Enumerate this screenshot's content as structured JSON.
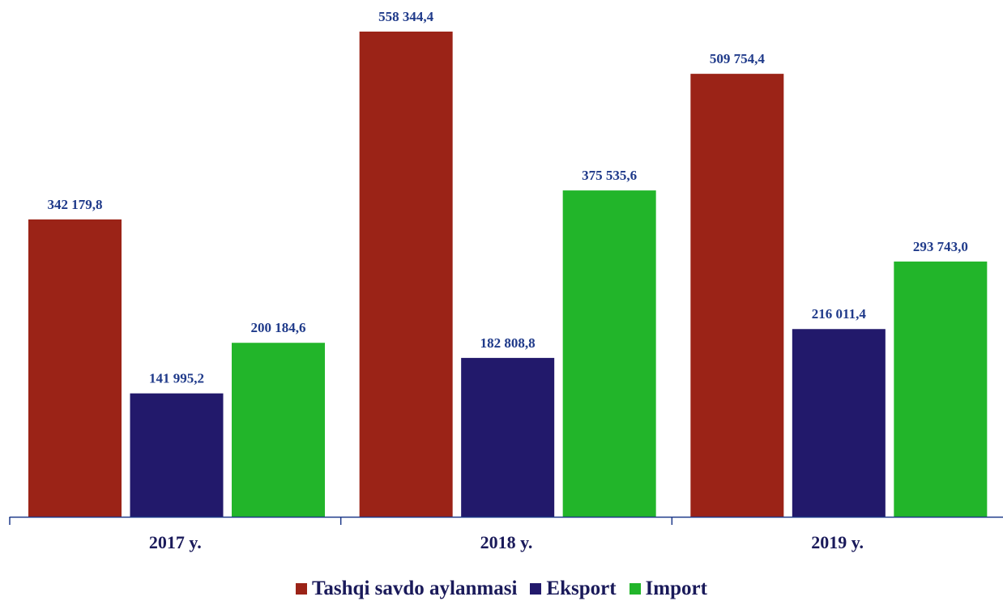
{
  "chart_data": {
    "type": "bar",
    "categories": [
      "2017 y.",
      "2018 y.",
      "2019 y."
    ],
    "series": [
      {
        "name": "Tashqi savdo aylanmasi",
        "color": "#9b2317",
        "values": [
          342179.8,
          558344.4,
          509754.4
        ],
        "value_labels": [
          "342 179,8",
          "558 344,4",
          "509 754,4"
        ]
      },
      {
        "name": "Eksport",
        "color": "#22196b",
        "values": [
          141995.2,
          182808.8,
          216011.4
        ],
        "value_labels": [
          "141 995,2",
          "182 808,8",
          "216 011,4"
        ]
      },
      {
        "name": "Import",
        "color": "#22b52a",
        "values": [
          200184.6,
          375535.6,
          293743.0
        ],
        "value_labels": [
          "200 184,6",
          "375 535,6",
          "293 743,0"
        ]
      }
    ]
  }
}
